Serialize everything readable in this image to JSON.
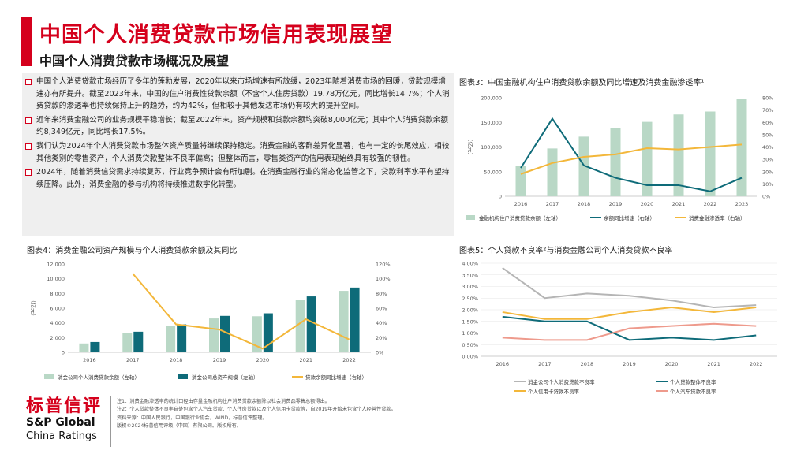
{
  "header": {
    "title": "中国个人消费贷款市场信用表现展望",
    "subtitle": "中国个人消费贷款市场概况及展望"
  },
  "bullets": [
    "中国个人消费贷款市场经历了多年的蓬勃发展，2020年以来市场增速有所放缓，2023年随着消费市场的回暖，贷款规模增速亦有所提升。截至2023年末，中国的住户消费性贷款余额（不含个人住房贷款）19.78万亿元，同比增长14.7%；个人消费贷款的渗透率也持续保持上升的趋势，约为42%，但相较于其他发达市场仍有较大的提升空间。",
    "近年来消费金融公司的业务规模平稳增长；截至2022年末，资产规模和贷款余额均突破8,000亿元；其中个人消费贷款余额约8,349亿元，同比增长17.5%。",
    "我们认为2024年个人消费贷款市场整体资产质量将继续保持稳定。消费金融的客群差异化显著，也有一定的长尾效应，相较其他类别的零售资产，个人消费贷款整体不良率偏高；但整体而言，零售类资产的信用表现始终具有较强的韧性。",
    "2024年，随着消费信贷需求持续复苏，行业竞争预计会有所加剧。在消费金融行业的常态化监管之下，贷款利率水平有望持续压降。此外，消费金融的参与机构将持续推进数字化转型。"
  ],
  "logo": {
    "cn": "标普信评",
    "en1": "S&P Global",
    "en2": "China Ratings"
  },
  "notes": [
    "注1：消费金融渗透率的统计口径由存量金融机构住户消费贷款余额除以社会消费品零售总额得出。",
    "注2：个人贷款整体不良率自处包含个人汽车贷款、个人住房贷款以及个人信用卡贷款等，自2019年开始未包含个人经营性贷款。",
    "资料来源：中国人民银行，中国银行业协会，WIND，标普信评整理。",
    "版权©2024标普信用评级（中国）有限公司。版权所有。"
  ],
  "colors": {
    "red": "#d5001c",
    "lightGreen": "#b9d8c6",
    "teal": "#0e6b79",
    "yellow": "#f3b73a",
    "gray": "#b5b5b5",
    "salmon": "#ee9a8c"
  },
  "chart_data": [
    {
      "id": "chart3",
      "type": "bar",
      "title": "图表3：中国金融机构住户消费贷款余额及同比增速及消费金融渗透率¹",
      "ylabel": "（亿元）",
      "categories": [
        "2016",
        "2017",
        "2018",
        "2019",
        "2020",
        "2021",
        "2022",
        "2023"
      ],
      "ylim": [
        0,
        200000
      ],
      "yticks": [
        "0",
        "50,000",
        "100,000",
        "150,000",
        "200,000"
      ],
      "y2lim": [
        0,
        80
      ],
      "y2ticks": [
        "0%",
        "10%",
        "20%",
        "30%",
        "40%",
        "50%",
        "60%",
        "70%",
        "80%"
      ],
      "series": [
        {
          "name": "金融机构住户消费贷款余额（左轴）",
          "kind": "bar",
          "axis": "left",
          "values": [
            62000,
            97000,
            121000,
            139000,
            151000,
            166000,
            172000,
            198000
          ]
        },
        {
          "name": "余额同比增速（右轴）",
          "kind": "line",
          "axis": "right",
          "values": [
            23,
            63,
            25,
            15,
            9,
            9,
            4,
            15
          ]
        },
        {
          "name": "消费金融渗透率（右轴）",
          "kind": "line",
          "axis": "right",
          "values": [
            18,
            27,
            32,
            34,
            39,
            38,
            40,
            42
          ]
        }
      ]
    },
    {
      "id": "chart4",
      "type": "bar",
      "title": "图表4：消费金融公司资产规模与个人消费贷款余额及其同比",
      "ylabel": "（亿元）",
      "categories": [
        "2016",
        "2017",
        "2018",
        "2019",
        "2020",
        "2021",
        "2022"
      ],
      "ylim": [
        0,
        12000
      ],
      "yticks": [
        "0",
        "2,000",
        "4,000",
        "6,000",
        "8,000",
        "10,000",
        "12,000"
      ],
      "y2lim": [
        0,
        120
      ],
      "y2ticks": [
        "0%",
        "20%",
        "40%",
        "60%",
        "80%",
        "100%",
        "120%"
      ],
      "series": [
        {
          "name": "消金公司个人消费贷款余额（左轴）",
          "kind": "bar",
          "axis": "left",
          "values": [
            1200,
            2600,
            3600,
            4600,
            4900,
            7100,
            8349
          ]
        },
        {
          "name": "消金公司总资产规模（左轴）",
          "kind": "bar",
          "axis": "left",
          "values": [
            1400,
            2800,
            3800,
            4950,
            5300,
            7600,
            8800
          ]
        },
        {
          "name": "贷款余额同比增速（右轴）",
          "kind": "line",
          "axis": "right",
          "values": [
            null,
            107,
            38,
            31,
            5,
            45,
            17.5
          ]
        }
      ]
    },
    {
      "id": "chart5",
      "type": "line",
      "title": "图表5：个人贷款不良率²与消费金融公司个人消费贷款不良率",
      "categories": [
        "2016",
        "2017",
        "2018",
        "2019",
        "2020",
        "2021",
        "2022"
      ],
      "ylim": [
        0,
        4.0
      ],
      "yticks": [
        "0.00%",
        "0.50%",
        "1.00%",
        "1.50%",
        "2.00%",
        "2.50%",
        "3.00%",
        "3.50%",
        "4.00%"
      ],
      "series": [
        {
          "name": "消金公司个人消费贷款不良率",
          "values": [
            3.8,
            2.5,
            2.7,
            2.6,
            2.4,
            2.1,
            2.2
          ]
        },
        {
          "name": "个人贷款整体不良率",
          "values": [
            1.7,
            1.5,
            1.5,
            0.7,
            0.8,
            0.7,
            0.9
          ]
        },
        {
          "name": "个人信用卡贷款不良率",
          "values": [
            1.9,
            1.6,
            1.6,
            1.9,
            2.1,
            1.9,
            2.1
          ]
        },
        {
          "name": "个人汽车贷款不良率",
          "values": [
            0.8,
            0.7,
            0.7,
            1.2,
            1.3,
            1.4,
            1.3
          ]
        }
      ]
    }
  ]
}
